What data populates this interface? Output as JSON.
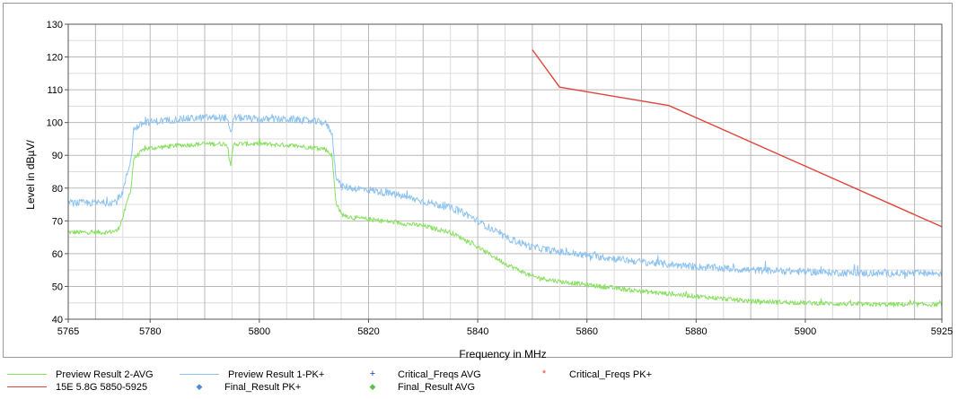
{
  "chart_data": {
    "type": "line",
    "xlabel": "Frequency in MHz",
    "ylabel": "Level in dBµV/",
    "xlim": [
      5765,
      5925
    ],
    "ylim": [
      40,
      130
    ],
    "x_ticks": [
      "5765",
      "5780",
      "5800",
      "5820",
      "5840",
      "5860",
      "5880",
      "5900",
      "5925"
    ],
    "y_ticks": [
      "40",
      "50",
      "60",
      "70",
      "80",
      "90",
      "100",
      "110",
      "120",
      "130"
    ],
    "grid": true,
    "legend_position": "bottom",
    "series": [
      {
        "name": "Preview Result 2-AVG",
        "color": "#88e060",
        "x": [
          5765,
          5772,
          5774,
          5775,
          5776.5,
          5777,
          5779,
          5785,
          5790,
          5794,
          5794.8,
          5795.3,
          5796,
          5800,
          5806,
          5812,
          5813.3,
          5814,
          5815,
          5817,
          5820,
          5825,
          5830,
          5835,
          5838,
          5842,
          5845,
          5850,
          5855,
          5860,
          5870,
          5880,
          5890,
          5900,
          5910,
          5925
        ],
        "values": [
          66.5,
          66.5,
          67,
          71,
          80,
          89,
          92,
          93,
          93.5,
          93.5,
          87,
          93.5,
          93.5,
          93.5,
          93,
          92,
          90,
          76,
          72,
          71,
          70.5,
          69.5,
          68.5,
          66.5,
          64,
          60,
          57,
          53,
          51.5,
          50.5,
          48.5,
          47,
          45.5,
          45,
          44.5,
          44.5
        ]
      },
      {
        "name": "Preview Result 1-PK+",
        "color": "#8ec3f0",
        "x": [
          5765,
          5772,
          5774,
          5775,
          5776.5,
          5777,
          5779,
          5785,
          5790,
          5794,
          5794.8,
          5795.3,
          5796,
          5800,
          5806,
          5812,
          5813.3,
          5814,
          5815,
          5817,
          5820,
          5825,
          5830,
          5835,
          5838,
          5842,
          5845,
          5850,
          5855,
          5860,
          5870,
          5880,
          5890,
          5900,
          5910,
          5925
        ],
        "values": [
          75.5,
          75.5,
          76,
          79,
          89,
          98,
          100,
          101,
          101.5,
          101.5,
          96,
          101.5,
          101.5,
          101,
          101,
          100,
          97,
          84,
          80.5,
          80,
          79.5,
          78,
          76,
          74,
          72,
          68,
          65,
          62,
          60.5,
          59.5,
          57.5,
          56,
          55,
          54.5,
          54,
          54
        ]
      },
      {
        "name": "15E 5.8G 5850-5925",
        "color": "#e0433c",
        "x": [
          5850,
          5855,
          5875,
          5925
        ],
        "values": [
          122.2,
          110.8,
          105.2,
          68.2
        ]
      }
    ],
    "legend_entries": [
      {
        "label": "Preview Result 2-AVG",
        "symbol": "line",
        "color": "#88e060"
      },
      {
        "label": "Preview Result 1-PK+",
        "symbol": "line",
        "color": "#8ec3f0"
      },
      {
        "label": "Critical_Freqs AVG",
        "symbol": "+",
        "color": "#1f3fae"
      },
      {
        "label": "Critical_Freqs PK+",
        "symbol": "*",
        "color": "#e0433c"
      },
      {
        "label": "15E 5.8G 5850-5925",
        "symbol": "line",
        "color": "#e0433c"
      },
      {
        "label": "Final_Result PK+",
        "symbol": "◆",
        "color": "#4f8fce"
      },
      {
        "label": "Final_Result AVG",
        "symbol": "◆",
        "color": "#5cc04a"
      }
    ]
  }
}
